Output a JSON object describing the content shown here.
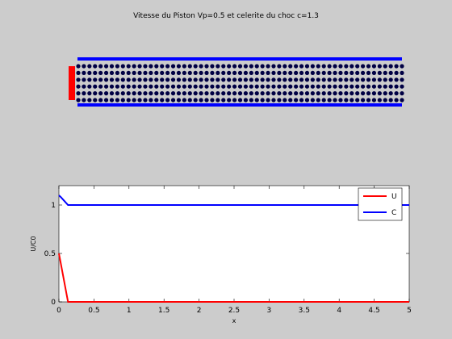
{
  "chart_data": [
    {
      "type": "scatter",
      "title": "Vitesse du Piston Vp=0.5  et celerite du choc c=1.3",
      "particles": {
        "columns": 59,
        "rows": 6,
        "color": "#000044"
      },
      "piston": {
        "color": "#ff0000"
      },
      "tube": {
        "color": "#0000ff"
      }
    },
    {
      "type": "line",
      "xlabel": "x",
      "ylabel": "U/C0",
      "xlim": [
        0,
        5
      ],
      "ylim": [
        0,
        1.2
      ],
      "xticks": [
        "0",
        "0.5",
        "1",
        "1.5",
        "2",
        "2.5",
        "3",
        "3.5",
        "4",
        "4.5",
        "5"
      ],
      "yticks": [
        "0",
        "0.5",
        "1"
      ],
      "legend_position": "top-right",
      "series": [
        {
          "name": "U",
          "color": "#ff0000",
          "x": [
            0,
            0.13,
            5
          ],
          "y": [
            0.5,
            0,
            0
          ]
        },
        {
          "name": "C",
          "color": "#0000ff",
          "x": [
            0,
            0.03,
            0.13,
            5
          ],
          "y": [
            1.1,
            1.08,
            1.0,
            1.0
          ]
        }
      ]
    }
  ]
}
